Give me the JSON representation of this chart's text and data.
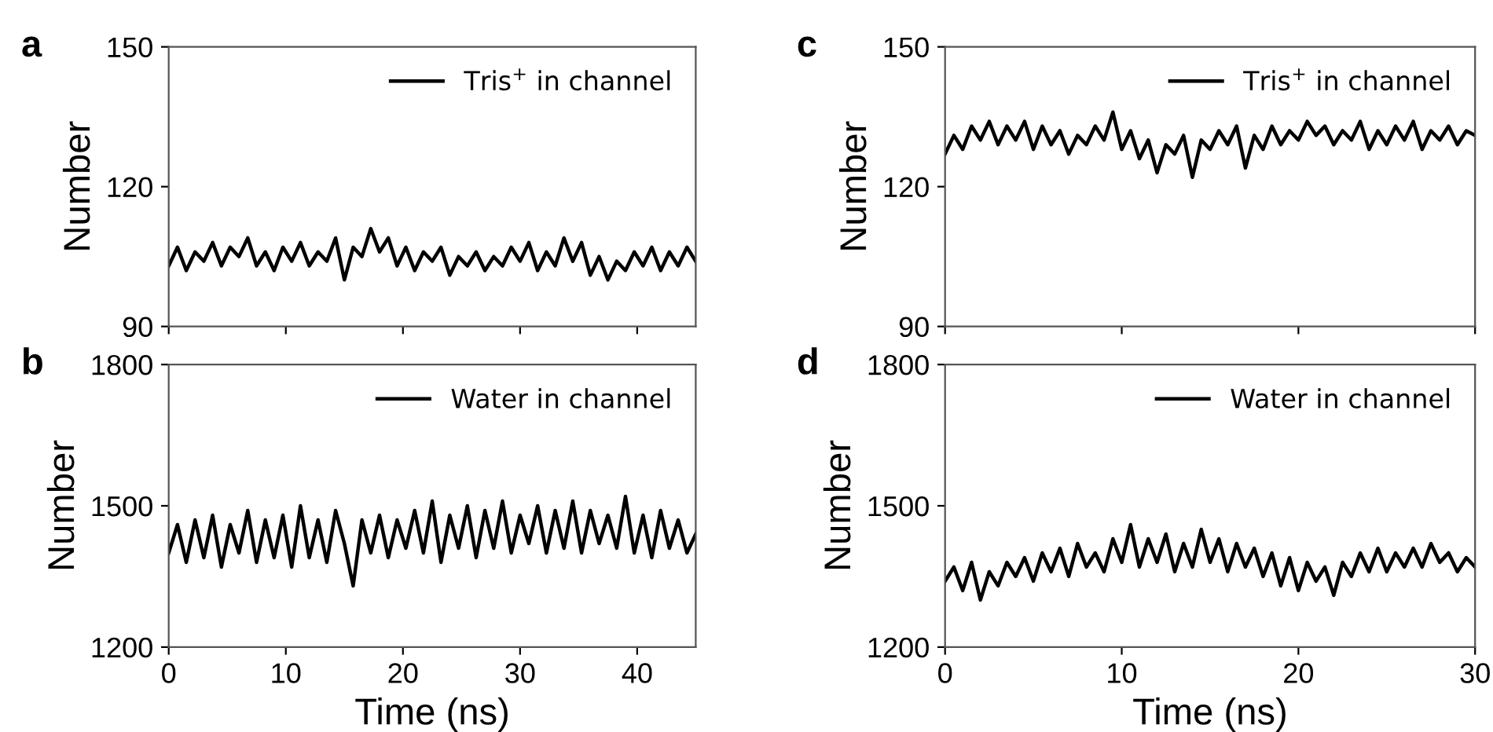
{
  "chart_data": [
    {
      "type": "line",
      "title": "a",
      "ylabel": "Number",
      "xlim": [
        0,
        45
      ],
      "xticks": [
        0,
        10,
        20,
        30,
        40
      ],
      "ylim": [
        90,
        150
      ],
      "yticks": [
        90,
        120,
        150
      ],
      "tick_labels": "y",
      "legend": "top right",
      "grid": false,
      "series": [
        {
          "name": "Tris$^{+}$ in channel",
          "color": "#000000",
          "x": [
            0,
            0.75,
            1.5,
            2.25,
            3,
            3.75,
            4.5,
            5.25,
            6,
            6.75,
            7.5,
            8.25,
            9,
            9.75,
            10.5,
            11.25,
            12,
            12.75,
            13.5,
            14.25,
            15,
            15.75,
            16.5,
            17.25,
            18,
            18.75,
            19.5,
            20.25,
            21,
            21.75,
            22.5,
            23.25,
            24,
            24.75,
            25.5,
            26.25,
            27,
            27.75,
            28.5,
            29.25,
            30,
            30.75,
            31.5,
            32.25,
            33,
            33.75,
            34.5,
            35.25,
            36,
            36.75,
            37.5,
            38.25,
            39,
            39.75,
            40.5,
            41.25,
            42,
            42.75,
            43.5,
            44.25,
            45
          ],
          "values": [
            103,
            107,
            102,
            106,
            104,
            108,
            103,
            107,
            105,
            109,
            103,
            106,
            102,
            107,
            104,
            108,
            103,
            106,
            104,
            109,
            100,
            107,
            105,
            111,
            106,
            109,
            103,
            107,
            102,
            106,
            104,
            107,
            101,
            105,
            103,
            106,
            102,
            105,
            103,
            107,
            104,
            108,
            102,
            106,
            103,
            109,
            104,
            108,
            101,
            105,
            100,
            104,
            102,
            106,
            103,
            107,
            102,
            106,
            103,
            107,
            104
          ]
        }
      ]
    },
    {
      "type": "line",
      "title": "c",
      "ylabel": "Number",
      "xlim": [
        0,
        30
      ],
      "xticks": [
        0,
        10,
        20,
        30
      ],
      "ylim": [
        90,
        150
      ],
      "yticks": [
        90,
        120,
        150
      ],
      "tick_labels": "y",
      "legend": "top right",
      "grid": false,
      "series": [
        {
          "name": "Tris$^{+}$ in channel",
          "color": "#000000",
          "x": [
            0,
            0.5,
            1,
            1.5,
            2,
            2.5,
            3,
            3.5,
            4,
            4.5,
            5,
            5.5,
            6,
            6.5,
            7,
            7.5,
            8,
            8.5,
            9,
            9.5,
            10,
            10.5,
            11,
            11.5,
            12,
            12.5,
            13,
            13.5,
            14,
            14.5,
            15,
            15.5,
            16,
            16.5,
            17,
            17.5,
            18,
            18.5,
            19,
            19.5,
            20,
            20.5,
            21,
            21.5,
            22,
            22.5,
            23,
            23.5,
            24,
            24.5,
            25,
            25.5,
            26,
            26.5,
            27,
            27.5,
            28,
            28.5,
            29,
            29.5,
            30
          ],
          "values": [
            127,
            131,
            128,
            133,
            130,
            134,
            129,
            133,
            130,
            134,
            128,
            133,
            129,
            132,
            127,
            131,
            129,
            133,
            130,
            136,
            128,
            132,
            126,
            130,
            123,
            129,
            127,
            131,
            122,
            130,
            128,
            132,
            129,
            133,
            124,
            131,
            128,
            133,
            129,
            132,
            130,
            134,
            131,
            133,
            129,
            132,
            130,
            134,
            128,
            132,
            129,
            133,
            130,
            134,
            128,
            132,
            130,
            133,
            129,
            132,
            131
          ]
        }
      ]
    },
    {
      "type": "line",
      "title": "b",
      "xlabel": "Time (ns)",
      "ylabel": "Number",
      "xlim": [
        0,
        45
      ],
      "xticks": [
        0,
        10,
        20,
        30,
        40
      ],
      "ylim": [
        1200,
        1800
      ],
      "yticks": [
        1200,
        1500,
        1800
      ],
      "legend": "top right",
      "grid": false,
      "series": [
        {
          "name": "Water in channel",
          "color": "#000000",
          "x": [
            0,
            0.75,
            1.5,
            2.25,
            3,
            3.75,
            4.5,
            5.25,
            6,
            6.75,
            7.5,
            8.25,
            9,
            9.75,
            10.5,
            11.25,
            12,
            12.75,
            13.5,
            14.25,
            15,
            15.75,
            16.5,
            17.25,
            18,
            18.75,
            19.5,
            20.25,
            21,
            21.75,
            22.5,
            23.25,
            24,
            24.75,
            25.5,
            26.25,
            27,
            27.75,
            28.5,
            29.25,
            30,
            30.75,
            31.5,
            32.25,
            33,
            33.75,
            34.5,
            35.25,
            36,
            36.75,
            37.5,
            38.25,
            39,
            39.75,
            40.5,
            41.25,
            42,
            42.75,
            43.5,
            44.25,
            45
          ],
          "values": [
            1400,
            1460,
            1380,
            1470,
            1390,
            1480,
            1370,
            1460,
            1400,
            1490,
            1380,
            1470,
            1390,
            1480,
            1370,
            1500,
            1390,
            1470,
            1380,
            1490,
            1420,
            1330,
            1470,
            1400,
            1480,
            1390,
            1470,
            1410,
            1490,
            1400,
            1510,
            1380,
            1480,
            1410,
            1500,
            1390,
            1490,
            1410,
            1510,
            1400,
            1480,
            1420,
            1500,
            1400,
            1490,
            1410,
            1510,
            1400,
            1490,
            1420,
            1480,
            1410,
            1520,
            1400,
            1480,
            1390,
            1490,
            1410,
            1470,
            1400,
            1440
          ]
        }
      ]
    },
    {
      "type": "line",
      "title": "d",
      "xlabel": "Time (ns)",
      "ylabel": "Number",
      "xlim": [
        0,
        30
      ],
      "xticks": [
        0,
        10,
        20,
        30
      ],
      "ylim": [
        1200,
        1800
      ],
      "yticks": [
        1200,
        1500,
        1800
      ],
      "legend": "top right",
      "grid": false,
      "series": [
        {
          "name": "Water in channel",
          "color": "#000000",
          "x": [
            0,
            0.5,
            1,
            1.5,
            2,
            2.5,
            3,
            3.5,
            4,
            4.5,
            5,
            5.5,
            6,
            6.5,
            7,
            7.5,
            8,
            8.5,
            9,
            9.5,
            10,
            10.5,
            11,
            11.5,
            12,
            12.5,
            13,
            13.5,
            14,
            14.5,
            15,
            15.5,
            16,
            16.5,
            17,
            17.5,
            18,
            18.5,
            19,
            19.5,
            20,
            20.5,
            21,
            21.5,
            22,
            22.5,
            23,
            23.5,
            24,
            24.5,
            25,
            25.5,
            26,
            26.5,
            27,
            27.5,
            28,
            28.5,
            29,
            29.5,
            30
          ],
          "values": [
            1340,
            1370,
            1320,
            1380,
            1300,
            1360,
            1330,
            1380,
            1350,
            1390,
            1340,
            1400,
            1360,
            1410,
            1350,
            1420,
            1370,
            1400,
            1360,
            1430,
            1380,
            1460,
            1370,
            1430,
            1380,
            1440,
            1360,
            1420,
            1370,
            1450,
            1380,
            1430,
            1360,
            1420,
            1370,
            1410,
            1350,
            1400,
            1330,
            1390,
            1320,
            1380,
            1340,
            1370,
            1310,
            1380,
            1350,
            1400,
            1360,
            1410,
            1360,
            1400,
            1370,
            1410,
            1370,
            1420,
            1380,
            1400,
            1360,
            1390,
            1370
          ]
        }
      ]
    }
  ]
}
